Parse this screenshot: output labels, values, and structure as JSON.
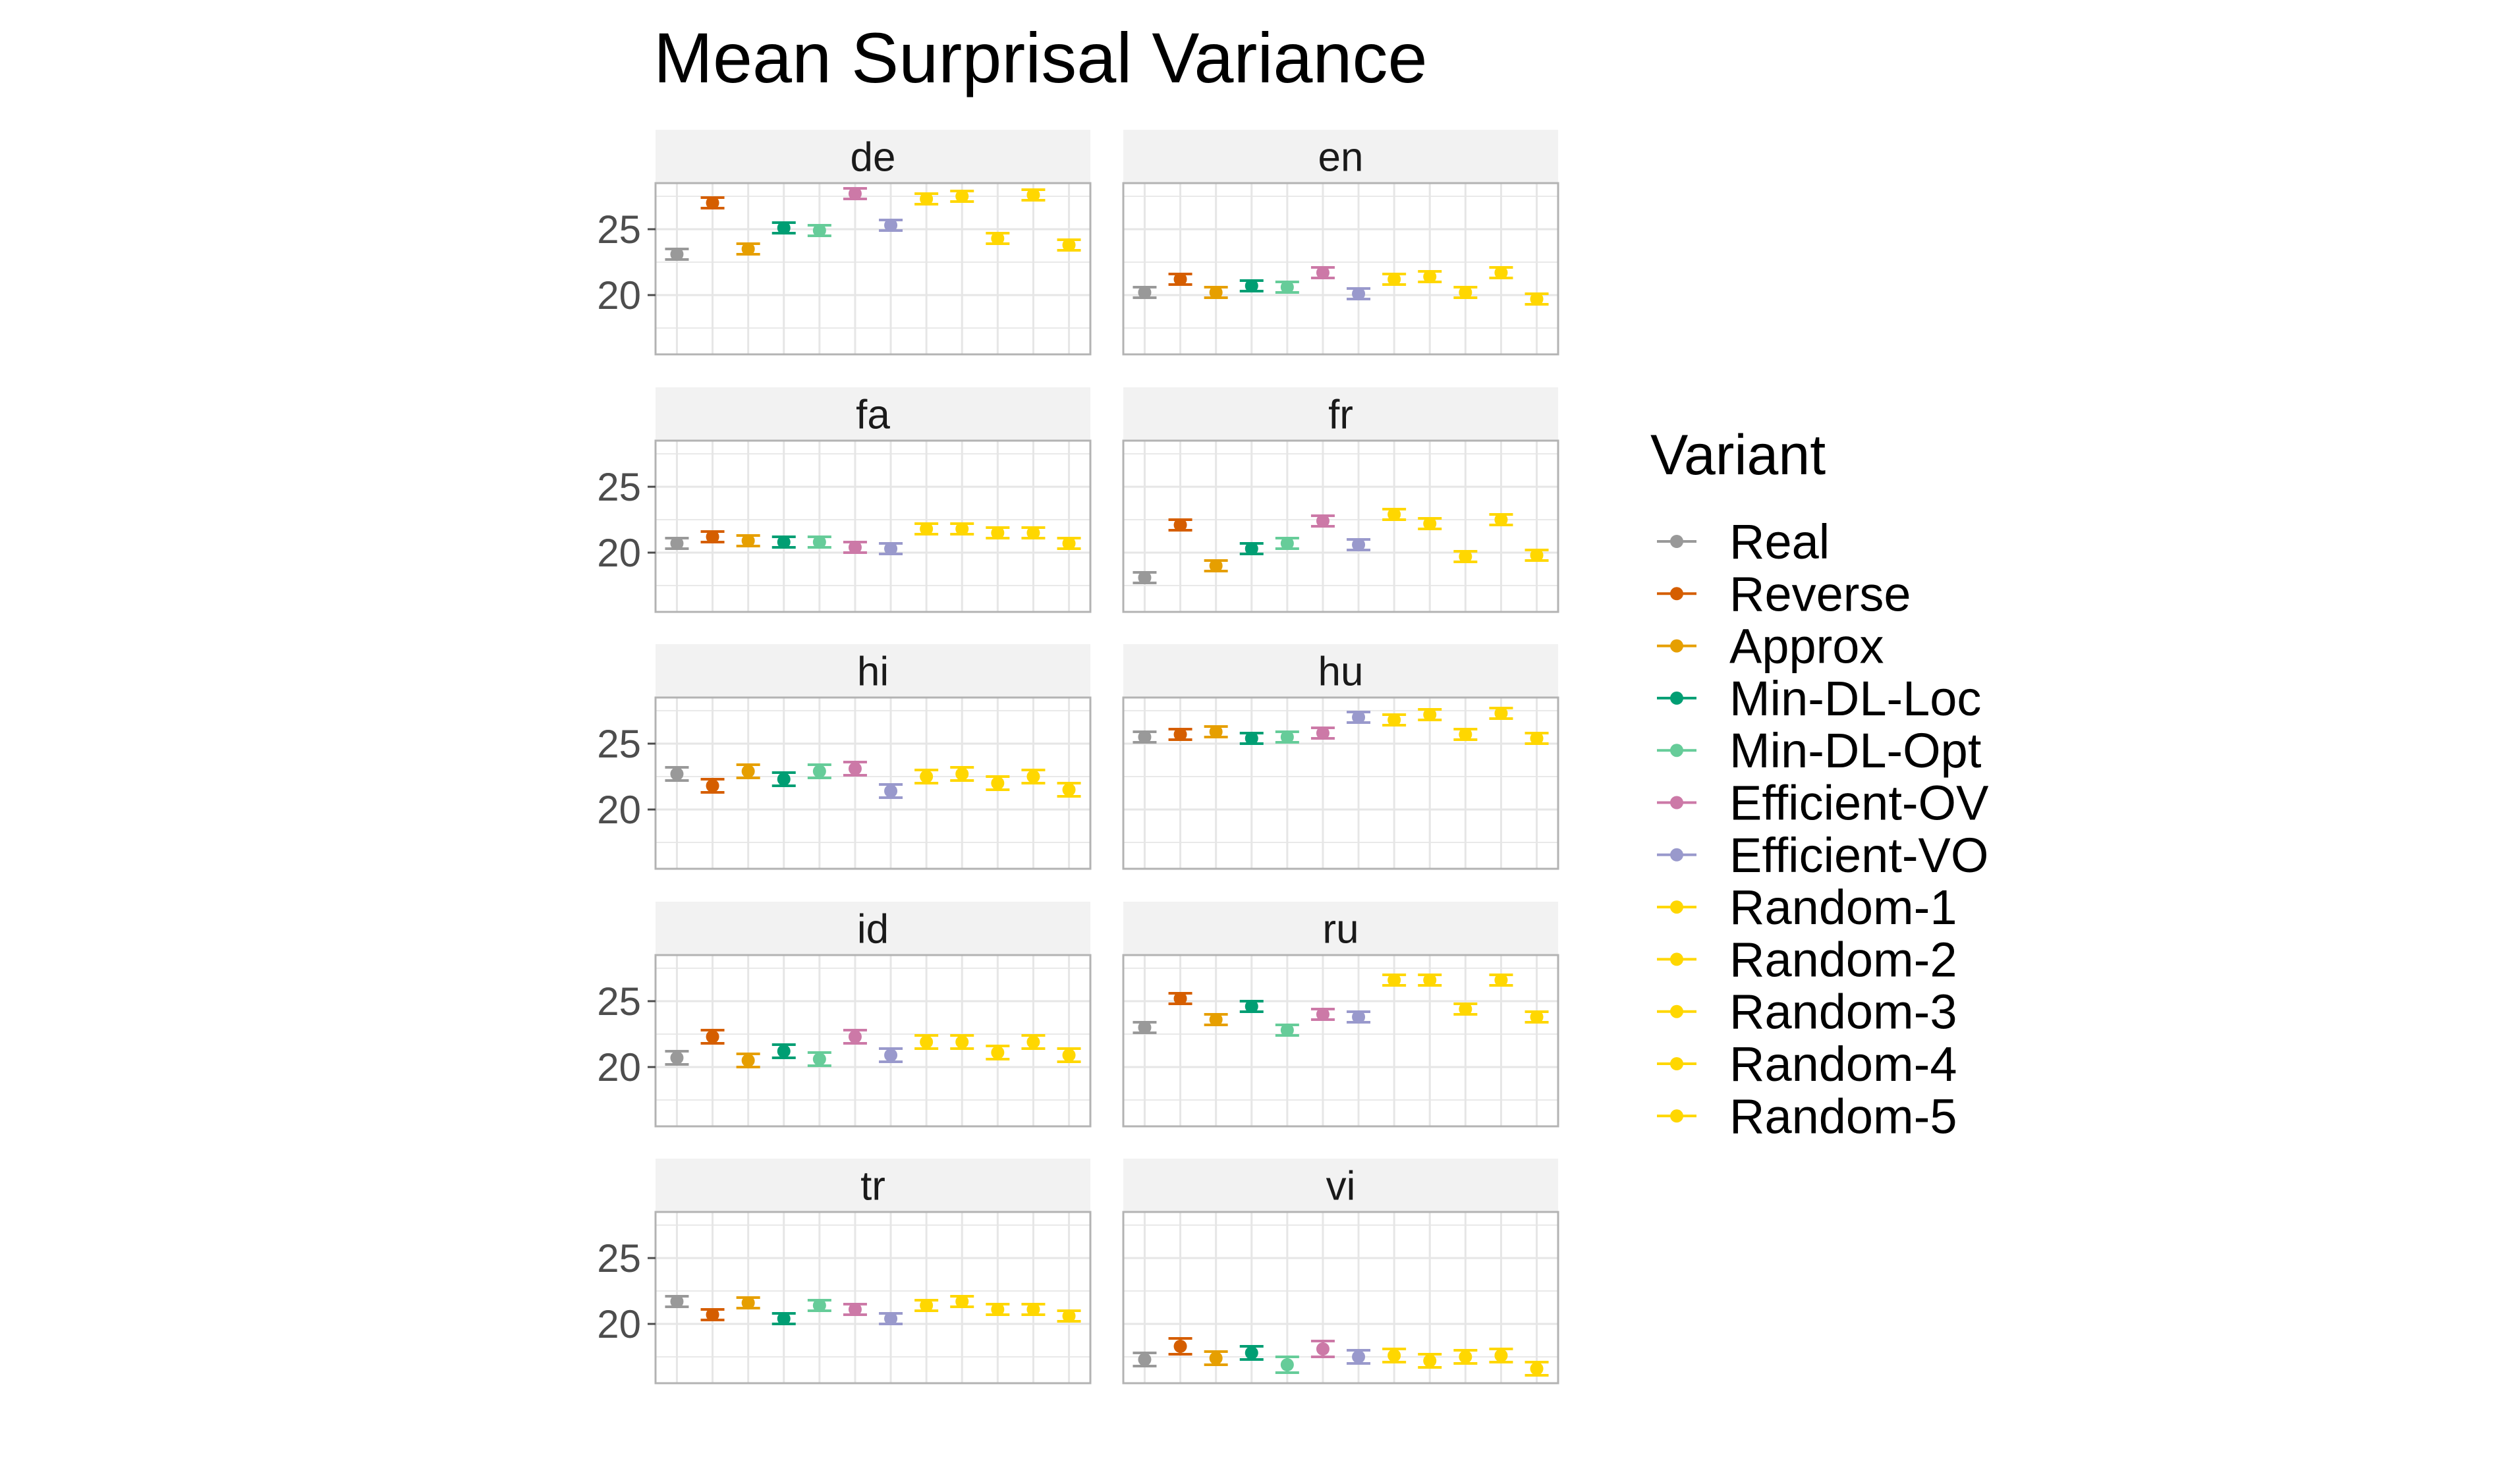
{
  "chart_data": {
    "type": "scatter",
    "title": "Mean Surprisal Variance",
    "xlabel": "",
    "ylabel": "",
    "facet_order": [
      "de",
      "en",
      "fa",
      "fr",
      "hi",
      "hu",
      "id",
      "ru",
      "tr",
      "vi"
    ],
    "yticks": [
      20,
      25
    ],
    "ylim": [
      15.5,
      28.5
    ],
    "grid": true,
    "legend": {
      "title": "Variant",
      "placement": "right"
    },
    "series": [
      {
        "name": "Real",
        "color": "#999999"
      },
      {
        "name": "Reverse",
        "color": "#D55E00"
      },
      {
        "name": "Approx",
        "color": "#E69F00"
      },
      {
        "name": "Min-DL-Loc",
        "color": "#009E73"
      },
      {
        "name": "Min-DL-Opt",
        "color": "#66CC99"
      },
      {
        "name": "Efficient-OV",
        "color": "#CC79A7"
      },
      {
        "name": "Efficient-VO",
        "color": "#9999CC"
      },
      {
        "name": "Random-1",
        "color": "#FFD700"
      },
      {
        "name": "Random-2",
        "color": "#FFD700"
      },
      {
        "name": "Random-3",
        "color": "#FFD700"
      },
      {
        "name": "Random-4",
        "color": "#FFD700"
      },
      {
        "name": "Random-5",
        "color": "#FFD700"
      }
    ],
    "facets": [
      {
        "label": "de",
        "points": [
          [
            23.1,
            0.4
          ],
          [
            27.0,
            0.4
          ],
          [
            23.5,
            0.4
          ],
          [
            25.1,
            0.4
          ],
          [
            24.9,
            0.4
          ],
          [
            27.7,
            0.4
          ],
          [
            25.3,
            0.4
          ],
          [
            27.3,
            0.4
          ],
          [
            27.5,
            0.4
          ],
          [
            24.3,
            0.4
          ],
          [
            27.6,
            0.4
          ],
          [
            23.8,
            0.4
          ]
        ]
      },
      {
        "label": "en",
        "points": [
          [
            20.2,
            0.4
          ],
          [
            21.2,
            0.4
          ],
          [
            20.2,
            0.4
          ],
          [
            20.7,
            0.4
          ],
          [
            20.6,
            0.4
          ],
          [
            21.7,
            0.4
          ],
          [
            20.1,
            0.4
          ],
          [
            21.2,
            0.4
          ],
          [
            21.4,
            0.4
          ],
          [
            20.2,
            0.4
          ],
          [
            21.7,
            0.4
          ],
          [
            19.7,
            0.4
          ]
        ]
      },
      {
        "label": "fa",
        "points": [
          [
            20.7,
            0.4
          ],
          [
            21.2,
            0.4
          ],
          [
            20.9,
            0.4
          ],
          [
            20.8,
            0.4
          ],
          [
            20.8,
            0.4
          ],
          [
            20.4,
            0.4
          ],
          [
            20.3,
            0.4
          ],
          [
            21.8,
            0.4
          ],
          [
            21.8,
            0.4
          ],
          [
            21.5,
            0.4
          ],
          [
            21.5,
            0.4
          ],
          [
            20.7,
            0.4
          ]
        ]
      },
      {
        "label": "fr",
        "points": [
          [
            18.1,
            0.4
          ],
          [
            22.1,
            0.4
          ],
          [
            19.0,
            0.4
          ],
          [
            20.3,
            0.4
          ],
          [
            20.7,
            0.4
          ],
          [
            22.4,
            0.4
          ],
          [
            20.6,
            0.4
          ],
          [
            22.9,
            0.4
          ],
          [
            22.2,
            0.4
          ],
          [
            19.7,
            0.4
          ],
          [
            22.5,
            0.4
          ],
          [
            19.8,
            0.4
          ]
        ]
      },
      {
        "label": "hi",
        "points": [
          [
            22.7,
            0.5
          ],
          [
            21.8,
            0.5
          ],
          [
            22.9,
            0.5
          ],
          [
            22.3,
            0.5
          ],
          [
            22.9,
            0.5
          ],
          [
            23.1,
            0.5
          ],
          [
            21.4,
            0.5
          ],
          [
            22.5,
            0.5
          ],
          [
            22.7,
            0.5
          ],
          [
            22.0,
            0.5
          ],
          [
            22.5,
            0.5
          ],
          [
            21.5,
            0.5
          ]
        ]
      },
      {
        "label": "hu",
        "points": [
          [
            25.5,
            0.4
          ],
          [
            25.7,
            0.4
          ],
          [
            25.9,
            0.4
          ],
          [
            25.4,
            0.4
          ],
          [
            25.5,
            0.4
          ],
          [
            25.8,
            0.4
          ],
          [
            27.0,
            0.4
          ],
          [
            26.8,
            0.4
          ],
          [
            27.2,
            0.4
          ],
          [
            25.7,
            0.4
          ],
          [
            27.3,
            0.4
          ],
          [
            25.4,
            0.4
          ]
        ]
      },
      {
        "label": "id",
        "points": [
          [
            20.7,
            0.5
          ],
          [
            22.3,
            0.5
          ],
          [
            20.5,
            0.5
          ],
          [
            21.2,
            0.5
          ],
          [
            20.6,
            0.5
          ],
          [
            22.3,
            0.5
          ],
          [
            20.9,
            0.5
          ],
          [
            21.9,
            0.5
          ],
          [
            21.9,
            0.5
          ],
          [
            21.1,
            0.5
          ],
          [
            21.9,
            0.5
          ],
          [
            20.9,
            0.5
          ]
        ]
      },
      {
        "label": "ru",
        "points": [
          [
            23.0,
            0.4
          ],
          [
            25.2,
            0.4
          ],
          [
            23.6,
            0.4
          ],
          [
            24.6,
            0.4
          ],
          [
            22.8,
            0.4
          ],
          [
            24.0,
            0.4
          ],
          [
            23.8,
            0.4
          ],
          [
            26.6,
            0.4
          ],
          [
            26.6,
            0.4
          ],
          [
            24.4,
            0.4
          ],
          [
            26.6,
            0.4
          ],
          [
            23.8,
            0.4
          ]
        ]
      },
      {
        "label": "tr",
        "points": [
          [
            21.7,
            0.4
          ],
          [
            20.7,
            0.4
          ],
          [
            21.6,
            0.4
          ],
          [
            20.4,
            0.4
          ],
          [
            21.4,
            0.4
          ],
          [
            21.1,
            0.4
          ],
          [
            20.4,
            0.4
          ],
          [
            21.4,
            0.4
          ],
          [
            21.7,
            0.4
          ],
          [
            21.1,
            0.4
          ],
          [
            21.1,
            0.4
          ],
          [
            20.6,
            0.4
          ]
        ]
      },
      {
        "label": "vi",
        "points": [
          [
            17.3,
            0.5
          ],
          [
            18.3,
            0.6
          ],
          [
            17.4,
            0.5
          ],
          [
            17.8,
            0.5
          ],
          [
            16.9,
            0.6
          ],
          [
            18.1,
            0.6
          ],
          [
            17.5,
            0.5
          ],
          [
            17.6,
            0.5
          ],
          [
            17.2,
            0.5
          ],
          [
            17.5,
            0.5
          ],
          [
            17.6,
            0.5
          ],
          [
            16.6,
            0.5
          ]
        ]
      }
    ]
  }
}
